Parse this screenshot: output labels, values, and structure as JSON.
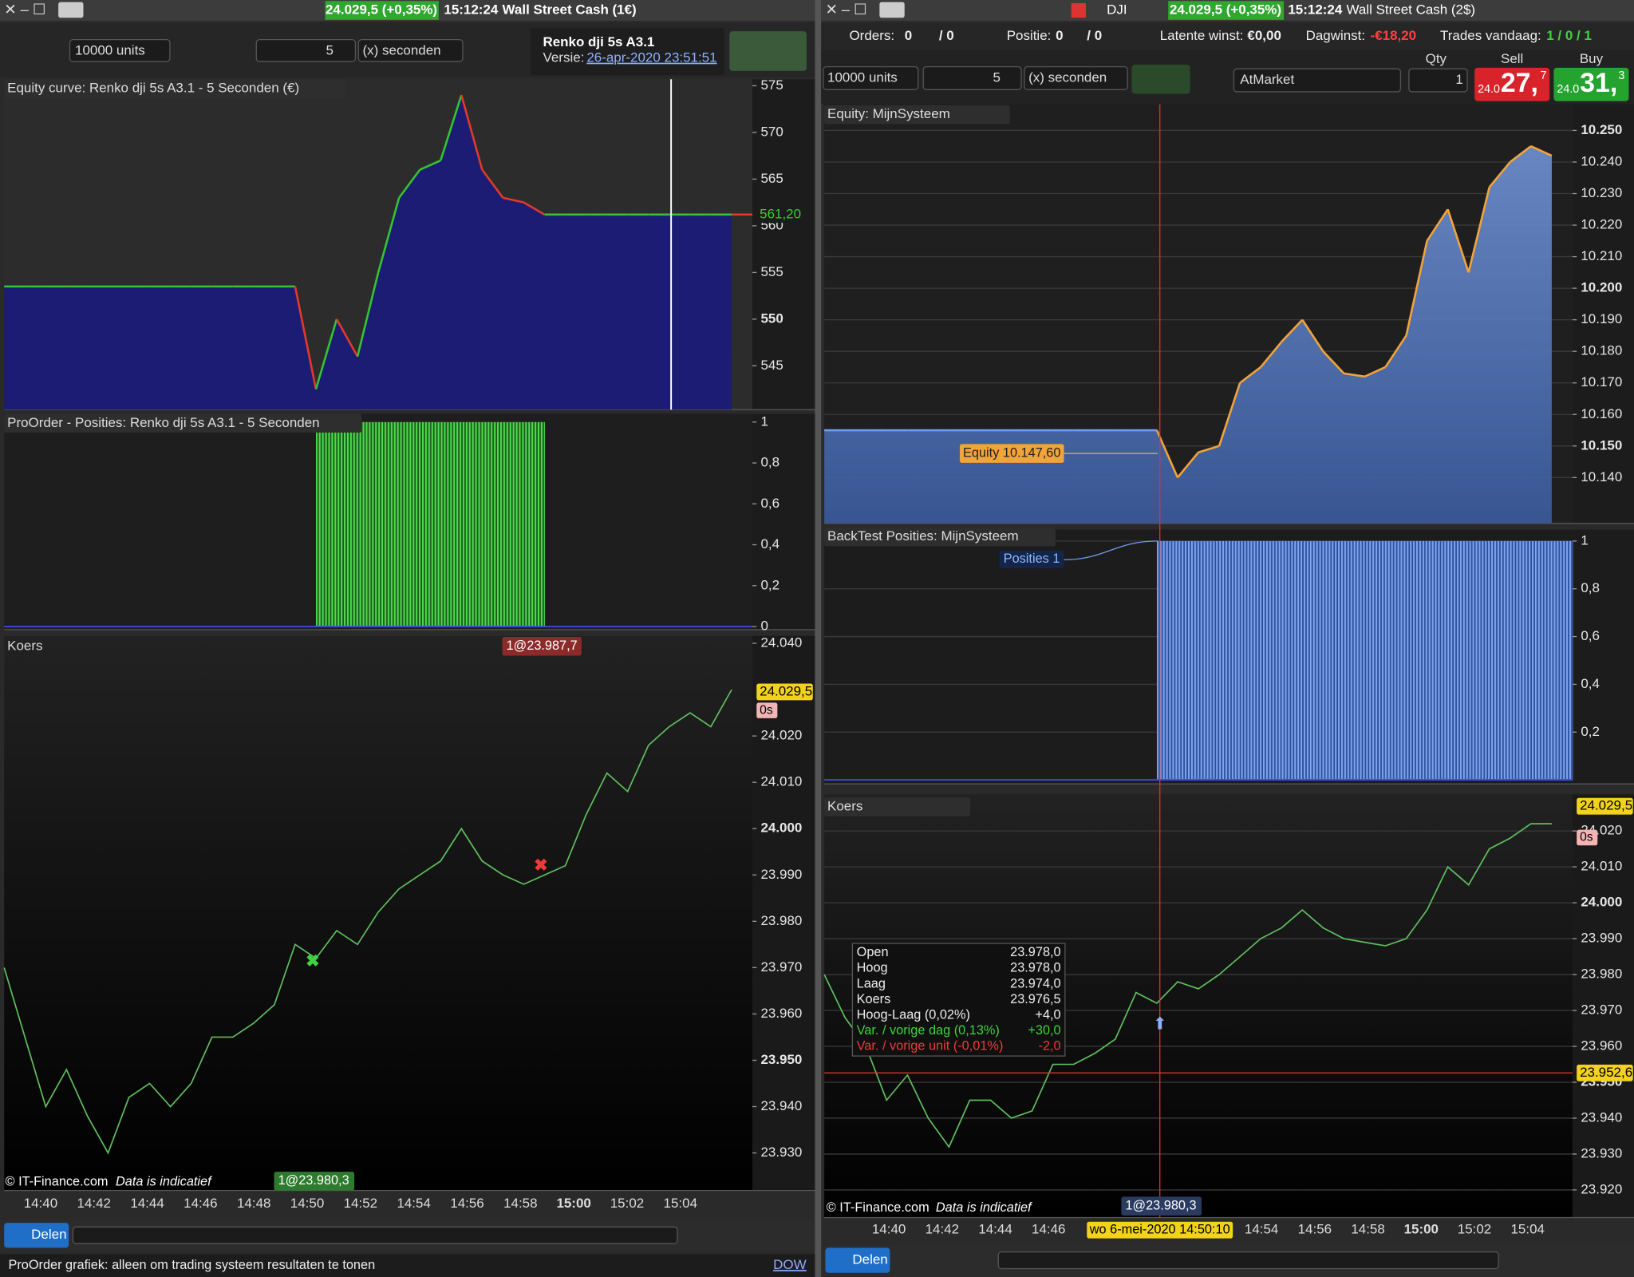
{
  "left": {
    "titlebar": {
      "quote": "24.029,5 (+0,35%)",
      "time": "15:12:24",
      "account": "Wall Street Cash (1€)"
    },
    "toolbar": {
      "units": "10000 units",
      "period": "5",
      "period_unit": "(x) seconden",
      "system": "Renko dji   5s A3.1",
      "version_label": "Versie:",
      "version": "26-apr-2020 23:51:51"
    },
    "equity": {
      "title": "Equity curve: Renko dji   5s A3.1 - 5 Seconden (€)",
      "ylim": [
        540.3,
        575.7
      ],
      "yticks": [
        575,
        570,
        565,
        560,
        555,
        550,
        545
      ],
      "last": {
        "value": 561.2,
        "label": "561,20"
      },
      "values": [
        553.5,
        553.5,
        553.5,
        553.5,
        553.5,
        553.5,
        553.5,
        553.5,
        553.5,
        553.5,
        553.5,
        553.5,
        553.5,
        553.5,
        553.5,
        542.5,
        550,
        546,
        555,
        563,
        566,
        567,
        574,
        566,
        563,
        562.5,
        561.2,
        561.2,
        561.2,
        561.2,
        561.2,
        561.2,
        561.2,
        561.2,
        561.2,
        561.2
      ]
    },
    "positions": {
      "title": "ProOrder - Posities: Renko dji   5s A3.1 - 5 Seconden",
      "ylim": [
        -0.015,
        1.04
      ],
      "yticks": [
        1,
        {
          "value": 0.8,
          "label": "0,8"
        },
        {
          "value": 0.6,
          "label": "0,6"
        },
        {
          "value": 0.4,
          "label": "0,4"
        },
        {
          "value": 0.2,
          "label": "0,2"
        },
        0
      ],
      "values": [
        0,
        0,
        0,
        0,
        0,
        0,
        0,
        0,
        0,
        0,
        0,
        0,
        0,
        0,
        0,
        1,
        1,
        1,
        1,
        1,
        1,
        1,
        1,
        1,
        1,
        1,
        0,
        0,
        0,
        0,
        0,
        0,
        0,
        0,
        0,
        0
      ]
    },
    "price": {
      "title": "Koers",
      "ylim": [
        23921.9,
        24041.6
      ],
      "yticks": [
        {
          "value": 24040,
          "label": "24.040"
        },
        {
          "value": 24020,
          "label": "24.020"
        },
        {
          "value": 24010,
          "label": "24.010"
        },
        {
          "value": 24000,
          "label": "24.000"
        },
        {
          "value": 23990,
          "label": "23.990"
        },
        {
          "value": 23980,
          "label": "23.980"
        },
        {
          "value": 23970,
          "label": "23.970"
        },
        {
          "value": 23960,
          "label": "23.960"
        },
        {
          "value": 23950,
          "label": "23.950"
        },
        {
          "value": 23940,
          "label": "23.940"
        },
        {
          "value": 23930,
          "label": "23.930"
        }
      ],
      "values": [
        23970,
        23955,
        23940,
        23948,
        23938,
        23930,
        23942,
        23945,
        23940,
        23945,
        23955,
        23955,
        23958,
        23962,
        23975,
        23972,
        23978,
        23975,
        23982,
        23987,
        23990,
        23993,
        24000,
        23993,
        23990,
        23988,
        23990,
        23992,
        24003,
        24012,
        24008,
        24018,
        24022,
        24025,
        24022,
        24030
      ],
      "last": {
        "value": 24029.5,
        "label": "24.029,5"
      },
      "countdown": "0s",
      "exit_label": "1@23.987,7",
      "entry_label": "1@23.980,3"
    },
    "xticks": [
      "14:40",
      "14:42",
      "14:44",
      "14:46",
      "14:48",
      "14:50",
      "14:52",
      "14:54",
      "14:56",
      "14:58",
      "15:00",
      "15:02",
      "15:04"
    ],
    "footer": {
      "copyright": "© IT-Finance.com",
      "disclaimer": "Data is indicatief",
      "share": "Delen",
      "status": "ProOrder grafiek: alleen om trading systeem resultaten te tonen",
      "link": "DOW"
    }
  },
  "right": {
    "titlebar": {
      "symbol": "DJI",
      "quote": "24.029,5 (+0,35%)",
      "time": "15:12:24",
      "account": "Wall Street Cash (2$)"
    },
    "status": {
      "orders_label": "Orders:",
      "orders": "0",
      "orders_total": "/ 0",
      "position_label": "Positie:",
      "position": "0",
      "position_total": "/ 0",
      "unrealized_label": "Latente winst:",
      "unrealized": "€0,00",
      "daily_label": "Dagwinst:",
      "daily": "-€18,20",
      "trades_label": "Trades vandaag:",
      "trades": "1 / 0 / 1"
    },
    "toolbar": {
      "units": "10000 units",
      "period": "5",
      "period_unit": "(x) seconden",
      "order_type": "AtMarket",
      "qty_label": "Qty",
      "qty": "1",
      "sell_label": "Sell",
      "sell_prefix": "24.0",
      "sell_big": "27,",
      "sell_small": "7",
      "buy_label": "Buy",
      "buy_prefix": "24.0",
      "buy_big": "31,",
      "buy_small": "3"
    },
    "equity": {
      "title": "Equity: MijnSysteem",
      "grid": true,
      "ylim": [
        10125.5,
        10258.3
      ],
      "yticks": [
        {
          "value": 10250,
          "label": "10.250"
        },
        {
          "value": 10240,
          "label": "10.240"
        },
        {
          "value": 10230,
          "label": "10.230"
        },
        {
          "value": 10220,
          "label": "10.220"
        },
        {
          "value": 10210,
          "label": "10.210"
        },
        {
          "value": 10200,
          "label": "10.200"
        },
        {
          "value": 10190,
          "label": "10.190"
        },
        {
          "value": 10180,
          "label": "10.180"
        },
        {
          "value": 10170,
          "label": "10.170"
        },
        {
          "value": 10160,
          "label": "10.160"
        },
        {
          "value": 10150,
          "label": "10.150"
        },
        {
          "value": 10140,
          "label": "10.140"
        }
      ],
      "values": [
        10155,
        10155,
        10155,
        10155,
        10155,
        10155,
        10155,
        10155,
        10155,
        10155,
        10155,
        10155,
        10155,
        10155,
        10155,
        10155,
        10155,
        10140,
        10148,
        10150,
        10170,
        10175,
        10183,
        10190,
        10180,
        10173,
        10172,
        10175,
        10185,
        10215,
        10225,
        10205,
        10232,
        10240,
        10245,
        10242
      ],
      "annotation": "Equity  10.147,60"
    },
    "positions": {
      "title": "BackTest Posities: MijnSysteem",
      "grid": true,
      "ylim": [
        -0.017,
        1.048
      ],
      "yticks": [
        1,
        {
          "value": 0.8,
          "label": "0,8"
        },
        {
          "value": 0.6,
          "label": "0,6"
        },
        {
          "value": 0.4,
          "label": "0,4"
        },
        {
          "value": 0.2,
          "label": "0,2"
        }
      ],
      "values": [
        0,
        0,
        0,
        0,
        0,
        0,
        0,
        0,
        0,
        0,
        0,
        0,
        0,
        0,
        0,
        0,
        1,
        1,
        1,
        1,
        1,
        1,
        1,
        1,
        1,
        1,
        1,
        1,
        1,
        1,
        1,
        1,
        1,
        1,
        1,
        1
      ],
      "annotation": "Posities  1"
    },
    "price": {
      "title": "Koers",
      "grid": true,
      "ylim": [
        23912.3,
        24030.2
      ],
      "yticks": [
        {
          "value": 24020,
          "label": "24.020"
        },
        {
          "value": 24010,
          "label": "24.010"
        },
        {
          "value": 24000,
          "label": "24.000"
        },
        {
          "value": 23990,
          "label": "23.990"
        },
        {
          "value": 23980,
          "label": "23.980"
        },
        {
          "value": 23970,
          "label": "23.970"
        },
        {
          "value": 23960,
          "label": "23.960"
        },
        {
          "value": 23950,
          "label": "23.950"
        },
        {
          "value": 23940,
          "label": "23.940"
        },
        {
          "value": 23930,
          "label": "23.930"
        },
        {
          "value": 23920,
          "label": "23.920"
        }
      ],
      "values": [
        23980,
        23968,
        23960,
        23945,
        23952,
        23940,
        23932,
        23945,
        23945,
        23940,
        23942,
        23955,
        23955,
        23958,
        23962,
        23975,
        23972,
        23978,
        23976,
        23980,
        23985,
        23990,
        23993,
        23998,
        23993,
        23990,
        23989,
        23988,
        23990,
        23998,
        24010,
        24005,
        24015,
        24018,
        24022,
        24022
      ],
      "last": {
        "value": 24029.5,
        "label": "24.029,5"
      },
      "countdown": "0s",
      "crosshair": {
        "value": 23952.6,
        "label": "23.952,6"
      },
      "entry_label": "1@23.980,3"
    },
    "tooltip": [
      {
        "label": "Open",
        "value": "23.978,0"
      },
      {
        "label": "Hoog",
        "value": "23.978,0"
      },
      {
        "label": "Laag",
        "value": "23.974,0"
      },
      {
        "label": "Koers",
        "value": "23.976,5"
      },
      {
        "label": "Hoog-Laag (0,02%)",
        "value": "+4,0"
      },
      {
        "label": "Var. / vorige dag (0,13%)",
        "value": "+30,0"
      },
      {
        "label": "Var. / vorige unit (-0,01%)",
        "value": "-2,0"
      }
    ],
    "xticks": [
      "14:40",
      "14:42",
      "14:44",
      "14:46",
      "14:54",
      "14:56",
      "14:58",
      "15:00",
      "15:02",
      "15:04"
    ],
    "crosshair_time": "wo 6-mei-2020 14:50:10",
    "footer": {
      "copyright": "© IT-Finance.com",
      "disclaimer": "Data is indicatief",
      "share": "Delen"
    }
  }
}
